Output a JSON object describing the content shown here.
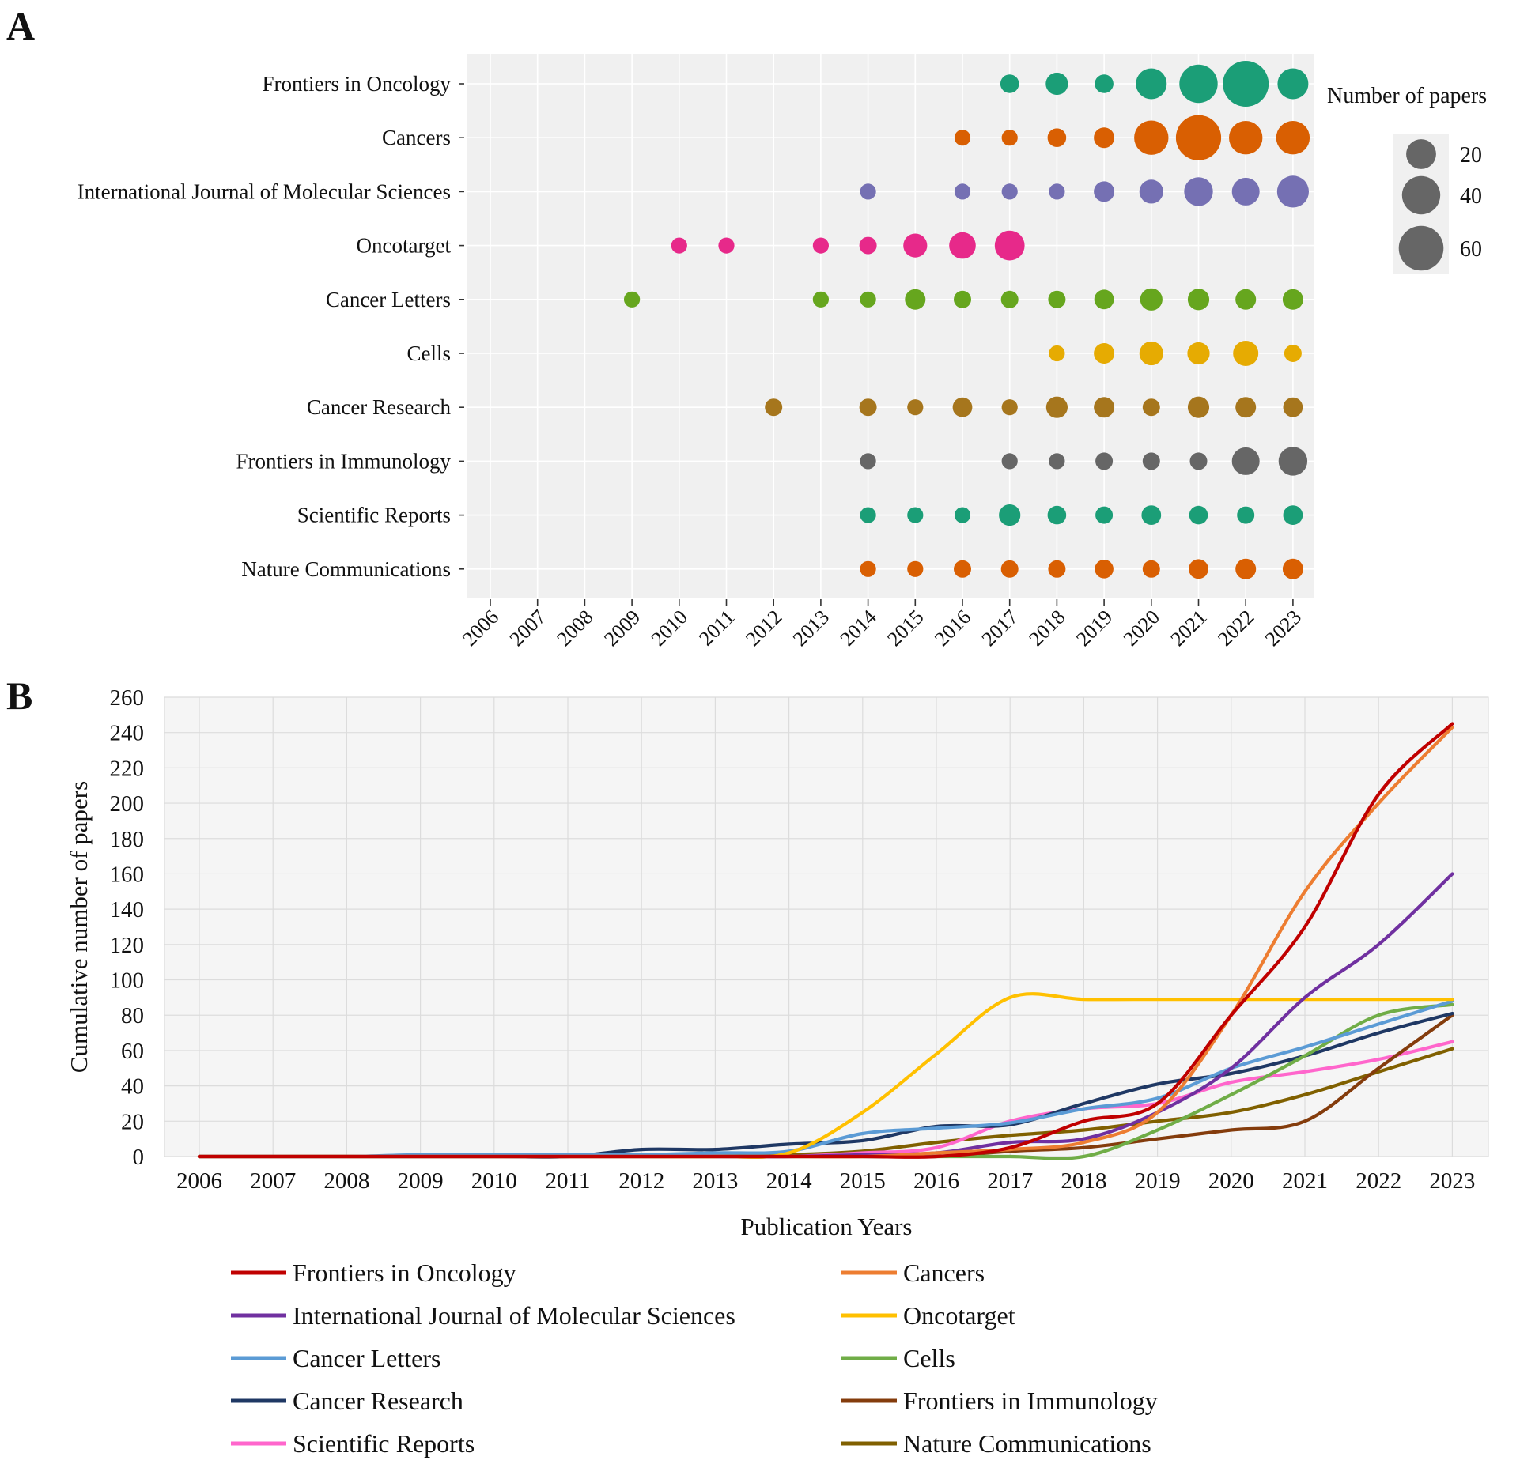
{
  "panel_a_label": "A",
  "panel_b_label": "B",
  "chart_data": [
    {
      "type": "scatter",
      "subtype": "bubble",
      "panel": "A",
      "x": [
        2006,
        2007,
        2008,
        2009,
        2010,
        2011,
        2012,
        2013,
        2014,
        2015,
        2016,
        2017,
        2018,
        2019,
        2020,
        2021,
        2022,
        2023
      ],
      "journals": [
        "Frontiers in Oncology",
        "Cancers",
        "International Journal of Molecular Sciences",
        "Oncotarget",
        "Cancer Letters",
        "Cells",
        "Cancer Research",
        "Frontiers in Immunology",
        "Scientific Reports",
        "Nature Communications"
      ],
      "colors": [
        "#1b9e77",
        "#d95f02",
        "#7570b3",
        "#e7298a",
        "#66a61e",
        "#e6ab02",
        "#a6761d",
        "#666666",
        "#1b9e77",
        "#d95f02"
      ],
      "values": [
        [
          0,
          0,
          0,
          0,
          0,
          0,
          0,
          0,
          0,
          0,
          0,
          4,
          8,
          4,
          22,
          40,
          64,
          22
        ],
        [
          0,
          0,
          0,
          0,
          0,
          0,
          0,
          0,
          0,
          0,
          2,
          2,
          4,
          6,
          30,
          62,
          28,
          28
        ],
        [
          0,
          0,
          0,
          0,
          0,
          0,
          0,
          0,
          2,
          0,
          2,
          2,
          2,
          6,
          10,
          18,
          16,
          24
        ],
        [
          0,
          0,
          0,
          0,
          2,
          2,
          0,
          2,
          3,
          10,
          14,
          20,
          0,
          0,
          0,
          0,
          0,
          0
        ],
        [
          0,
          0,
          0,
          2,
          0,
          0,
          0,
          2,
          2,
          6,
          3,
          3,
          3,
          5,
          8,
          7,
          6,
          6
        ],
        [
          0,
          0,
          0,
          0,
          0,
          0,
          0,
          0,
          0,
          0,
          0,
          0,
          2,
          6,
          10,
          8,
          12,
          3
        ],
        [
          0,
          0,
          0,
          0,
          0,
          0,
          3,
          0,
          3,
          2,
          5,
          2,
          7,
          6,
          3,
          7,
          6,
          5
        ],
        [
          0,
          0,
          0,
          0,
          0,
          0,
          0,
          0,
          2,
          0,
          0,
          2,
          2,
          3,
          3,
          3,
          16,
          18
        ],
        [
          0,
          0,
          0,
          0,
          0,
          0,
          0,
          0,
          2,
          2,
          2,
          7,
          4,
          3,
          5,
          4,
          3,
          5
        ],
        [
          0,
          0,
          0,
          0,
          0,
          0,
          0,
          0,
          2,
          2,
          3,
          3,
          3,
          4,
          3,
          5,
          6,
          6
        ]
      ],
      "size_legend_title": "Number of papers",
      "size_legend": [
        20,
        40,
        60
      ]
    },
    {
      "type": "line",
      "panel": "B",
      "x": [
        2006,
        2007,
        2008,
        2009,
        2010,
        2011,
        2012,
        2013,
        2014,
        2015,
        2016,
        2017,
        2018,
        2019,
        2020,
        2021,
        2022,
        2023
      ],
      "xlabel": "Publication Years",
      "ylabel": "Cumulative number of papers",
      "ylim": [
        0,
        260
      ],
      "yticks": [
        0,
        20,
        40,
        60,
        80,
        100,
        120,
        140,
        160,
        180,
        200,
        220,
        240,
        260
      ],
      "series": [
        {
          "name": "Frontiers in Oncology",
          "color": "#c00000",
          "values": [
            0,
            0,
            0,
            0,
            0,
            0,
            0,
            0,
            0,
            0,
            0,
            5,
            20,
            30,
            80,
            130,
            205,
            245
          ]
        },
        {
          "name": "Cancers",
          "color": "#ed7d31",
          "values": [
            0,
            0,
            0,
            0,
            0,
            0,
            0,
            0,
            0,
            0,
            2,
            4,
            8,
            25,
            80,
            150,
            200,
            243
          ]
        },
        {
          "name": "International Journal of Molecular Sciences",
          "color": "#7030a0",
          "values": [
            0,
            0,
            0,
            0,
            0,
            0,
            0,
            0,
            0,
            1,
            2,
            8,
            10,
            25,
            50,
            90,
            120,
            160
          ]
        },
        {
          "name": "Oncotarget",
          "color": "#ffc000",
          "values": [
            0,
            0,
            0,
            0,
            0,
            0,
            0,
            0,
            2,
            25,
            58,
            90,
            89,
            89,
            89,
            89,
            89,
            89
          ]
        },
        {
          "name": "Cancer Letters",
          "color": "#5b9bd5",
          "values": [
            0,
            0,
            0,
            1,
            1,
            1,
            1,
            2,
            3,
            13,
            16,
            19,
            27,
            33,
            50,
            62,
            75,
            88
          ]
        },
        {
          "name": "Cells",
          "color": "#70ad47",
          "values": [
            0,
            0,
            0,
            0,
            0,
            0,
            0,
            0,
            0,
            0,
            0,
            0,
            0,
            15,
            35,
            57,
            80,
            86
          ]
        },
        {
          "name": "Cancer Research",
          "color": "#1f3864",
          "values": [
            0,
            0,
            0,
            0,
            0,
            0,
            4,
            4,
            7,
            9,
            17,
            18,
            30,
            41,
            47,
            57,
            70,
            81
          ]
        },
        {
          "name": "Frontiers in Immunology",
          "color": "#843c0c",
          "values": [
            0,
            0,
            0,
            0,
            0,
            0,
            0,
            0,
            0,
            0,
            0,
            3,
            5,
            10,
            15,
            20,
            50,
            80
          ]
        },
        {
          "name": "Scientific Reports",
          "color": "#ff66cc",
          "values": [
            0,
            0,
            0,
            0,
            0,
            0,
            0,
            0,
            0,
            2,
            5,
            20,
            27,
            30,
            42,
            48,
            55,
            65
          ]
        },
        {
          "name": "Nature Communications",
          "color": "#806000",
          "values": [
            0,
            0,
            0,
            0,
            0,
            0,
            0,
            0,
            1,
            3,
            8,
            12,
            15,
            20,
            25,
            35,
            48,
            61
          ]
        }
      ]
    }
  ]
}
